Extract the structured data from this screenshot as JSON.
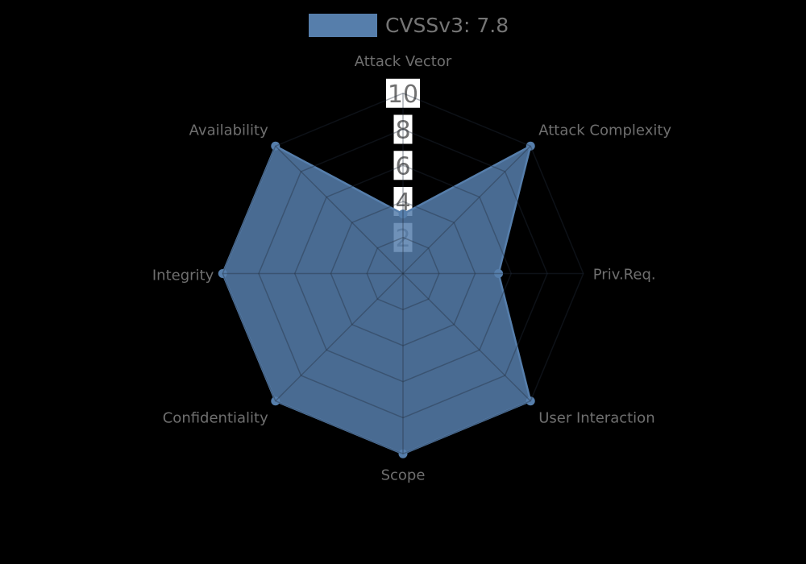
{
  "legend": {
    "label": "CVSSv3: 7.8"
  },
  "chart_data": {
    "type": "radar",
    "title": "CVSSv3: 7.8",
    "categories": [
      "Attack Vector",
      "Attack Complexity",
      "Priv.Req.",
      "User Interaction",
      "Scope",
      "Confidentiality",
      "Integrity",
      "Availability"
    ],
    "series": [
      {
        "name": "CVSSv3: 7.8",
        "values": [
          3.3,
          10,
          5.3,
          10,
          10,
          10,
          10,
          10
        ],
        "color": "#567eab",
        "fill_opacity": 0.85
      }
    ],
    "radial_ticks": [
      2,
      4,
      6,
      8,
      10
    ],
    "axis_max": 10,
    "axis_min": 0,
    "grid_shape": "polygon",
    "axis_count": 8,
    "start_axis": "top",
    "direction": "clockwise",
    "legend_position": "top-center",
    "background_color": "#000000",
    "grid_line_color": "rgba(35,45,60,0.38)",
    "tick_label_bg": "#ffffff",
    "tick_label_color": "#717171",
    "axis_label_color": "#6f6f6f"
  }
}
